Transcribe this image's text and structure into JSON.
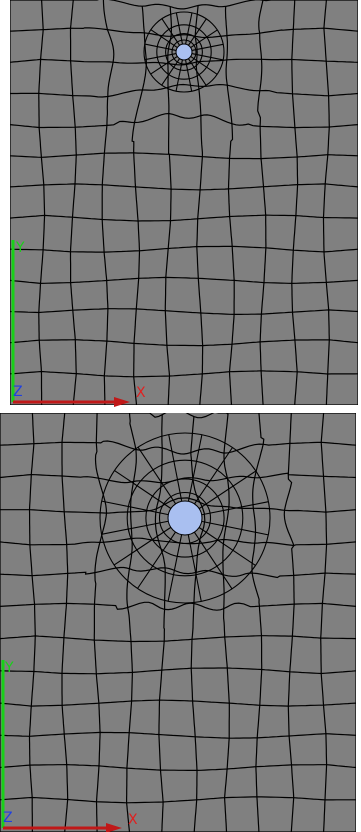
{
  "panels": [
    {
      "axis_labels": {
        "x": "X",
        "y": "Y",
        "z": "Z"
      }
    },
    {
      "axis_labels": {
        "x": "X",
        "y": "Y",
        "z": "Z"
      }
    }
  ]
}
